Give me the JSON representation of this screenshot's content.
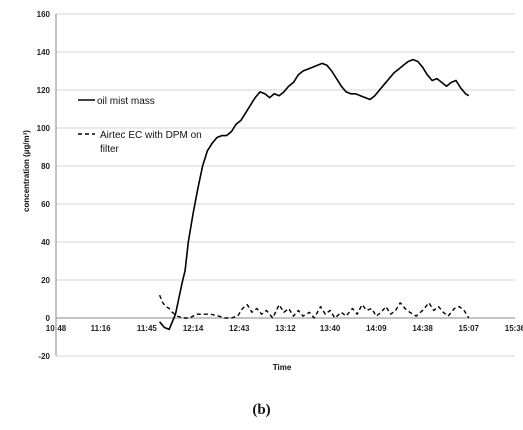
{
  "caption": "(b)",
  "chart_data": {
    "type": "line",
    "title": "",
    "xlabel": "Time",
    "ylabel": "concentration (µg/m³)",
    "ylim": [
      -20,
      160
    ],
    "yticks": [
      -20,
      0,
      20,
      40,
      60,
      80,
      100,
      120,
      140,
      160
    ],
    "xlim": [
      "10:48",
      "15:36"
    ],
    "xticks": [
      "10:48",
      "11:16",
      "11:45",
      "12:14",
      "12:43",
      "13:12",
      "13:40",
      "14:09",
      "14:38",
      "15:07",
      "15:36"
    ],
    "grid": "horizontal",
    "legend_position": "left",
    "series": [
      {
        "name": "oil mist mass",
        "style": "solid",
        "color": "#000000",
        "points": [
          [
            "11:53",
            -2
          ],
          [
            "11:56",
            -5
          ],
          [
            "11:59",
            -6
          ],
          [
            "12:01",
            -2
          ],
          [
            "12:03",
            2
          ],
          [
            "12:05",
            10
          ],
          [
            "12:07",
            18
          ],
          [
            "12:09",
            25
          ],
          [
            "12:11",
            40
          ],
          [
            "12:14",
            55
          ],
          [
            "12:17",
            68
          ],
          [
            "12:20",
            80
          ],
          [
            "12:23",
            88
          ],
          [
            "12:26",
            92
          ],
          [
            "12:29",
            95
          ],
          [
            "12:32",
            96
          ],
          [
            "12:35",
            96
          ],
          [
            "12:38",
            98
          ],
          [
            "12:41",
            102
          ],
          [
            "12:44",
            104
          ],
          [
            "12:47",
            108
          ],
          [
            "12:50",
            112
          ],
          [
            "12:53",
            116
          ],
          [
            "12:56",
            119
          ],
          [
            "12:59",
            118
          ],
          [
            "13:02",
            116
          ],
          [
            "13:05",
            118
          ],
          [
            "13:08",
            117
          ],
          [
            "13:11",
            119
          ],
          [
            "13:14",
            122
          ],
          [
            "13:17",
            124
          ],
          [
            "13:20",
            128
          ],
          [
            "13:23",
            130
          ],
          [
            "13:26",
            131
          ],
          [
            "13:29",
            132
          ],
          [
            "13:32",
            133
          ],
          [
            "13:35",
            134
          ],
          [
            "13:38",
            133
          ],
          [
            "13:41",
            130
          ],
          [
            "13:44",
            126
          ],
          [
            "13:47",
            122
          ],
          [
            "13:50",
            119
          ],
          [
            "13:53",
            118
          ],
          [
            "13:56",
            118
          ],
          [
            "13:59",
            117
          ],
          [
            "14:02",
            116
          ],
          [
            "14:05",
            115
          ],
          [
            "14:08",
            117
          ],
          [
            "14:11",
            120
          ],
          [
            "14:14",
            123
          ],
          [
            "14:17",
            126
          ],
          [
            "14:20",
            129
          ],
          [
            "14:23",
            131
          ],
          [
            "14:26",
            133
          ],
          [
            "14:29",
            135
          ],
          [
            "14:32",
            136
          ],
          [
            "14:35",
            135
          ],
          [
            "14:38",
            132
          ],
          [
            "14:41",
            128
          ],
          [
            "14:44",
            125
          ],
          [
            "14:47",
            126
          ],
          [
            "14:50",
            124
          ],
          [
            "14:53",
            122
          ],
          [
            "14:56",
            124
          ],
          [
            "14:59",
            125
          ],
          [
            "15:02",
            121
          ],
          [
            "15:05",
            118
          ],
          [
            "15:07",
            117
          ]
        ]
      },
      {
        "name": "Airtec EC with DPM on filter",
        "style": "dashed",
        "color": "#000000",
        "points": [
          [
            "11:53",
            12
          ],
          [
            "11:55",
            8
          ],
          [
            "11:57",
            6
          ],
          [
            "11:59",
            5
          ],
          [
            "12:01",
            3
          ],
          [
            "12:04",
            1
          ],
          [
            "12:08",
            0
          ],
          [
            "12:12",
            0
          ],
          [
            "12:16",
            2
          ],
          [
            "12:20",
            2
          ],
          [
            "12:25",
            2
          ],
          [
            "12:30",
            1
          ],
          [
            "12:34",
            0
          ],
          [
            "12:38",
            0
          ],
          [
            "12:42",
            1
          ],
          [
            "12:45",
            5
          ],
          [
            "12:48",
            7
          ],
          [
            "12:51",
            3
          ],
          [
            "12:54",
            5
          ],
          [
            "12:57",
            2
          ],
          [
            "13:00",
            4
          ],
          [
            "13:04",
            0
          ],
          [
            "13:08",
            7
          ],
          [
            "13:11",
            3
          ],
          [
            "13:14",
            5
          ],
          [
            "13:17",
            1
          ],
          [
            "13:20",
            4
          ],
          [
            "13:23",
            1
          ],
          [
            "13:27",
            3
          ],
          [
            "13:30",
            0
          ],
          [
            "13:34",
            6
          ],
          [
            "13:37",
            2
          ],
          [
            "13:40",
            4
          ],
          [
            "13:43",
            0
          ],
          [
            "13:47",
            3
          ],
          [
            "13:50",
            1
          ],
          [
            "13:54",
            5
          ],
          [
            "13:57",
            2
          ],
          [
            "14:00",
            7
          ],
          [
            "14:03",
            4
          ],
          [
            "14:06",
            5
          ],
          [
            "14:09",
            1
          ],
          [
            "14:12",
            3
          ],
          [
            "14:15",
            6
          ],
          [
            "14:18",
            2
          ],
          [
            "14:21",
            4
          ],
          [
            "14:24",
            8
          ],
          [
            "14:27",
            5
          ],
          [
            "14:30",
            3
          ],
          [
            "14:34",
            1
          ],
          [
            "14:38",
            4
          ],
          [
            "14:42",
            8
          ],
          [
            "14:45",
            4
          ],
          [
            "14:48",
            6
          ],
          [
            "14:51",
            3
          ],
          [
            "14:54",
            1
          ],
          [
            "14:58",
            5
          ],
          [
            "15:01",
            6
          ],
          [
            "15:04",
            4
          ],
          [
            "15:07",
            0
          ]
        ]
      }
    ]
  }
}
